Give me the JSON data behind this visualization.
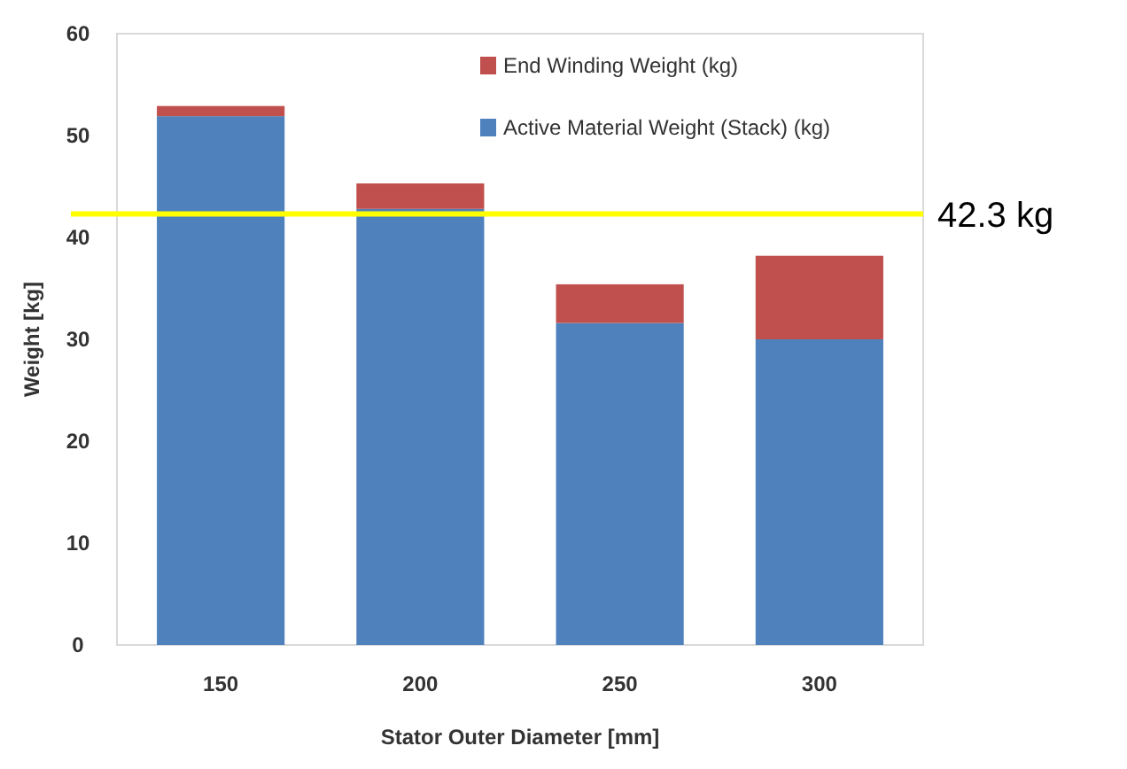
{
  "chart_data": {
    "type": "bar",
    "stacked": true,
    "xlabel": "Stator Outer Diameter [mm]",
    "ylabel": "Weight [kg]",
    "categories": [
      "150",
      "200",
      "250",
      "300"
    ],
    "series": [
      {
        "name": "Active Material Weight (Stack) (kg)",
        "color": "#4f81bd",
        "values": [
          51.9,
          42.8,
          31.6,
          30.0
        ]
      },
      {
        "name": "End Winding Weight (kg)",
        "color": "#c0504d",
        "values": [
          1.0,
          2.5,
          3.8,
          8.2
        ]
      }
    ],
    "ylim": [
      0,
      60
    ],
    "yticks": [
      0,
      10,
      20,
      30,
      40,
      50,
      60
    ],
    "grid": false,
    "legend": "top right",
    "ref_lines": [
      {
        "axis": "y",
        "value": 42.3,
        "label": "42.3 kg",
        "color": "#ffff00"
      }
    ]
  }
}
